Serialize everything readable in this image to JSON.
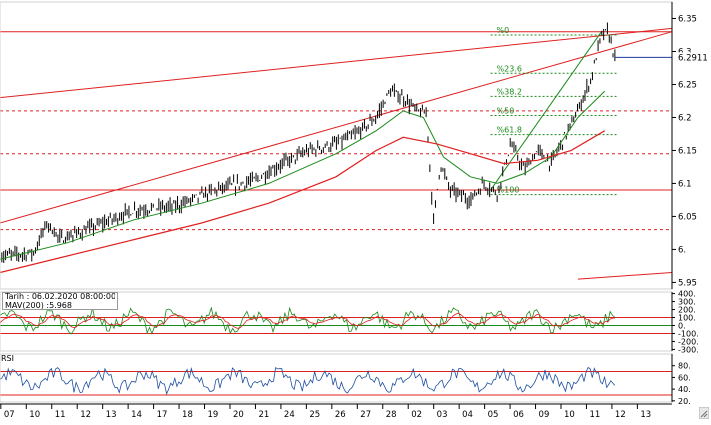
{
  "colors": {
    "price": "#000000",
    "ma_short": "#1a8a1a",
    "ma_long": "#e02020",
    "trendline": "#e02020",
    "horizontal": "#e02020",
    "fib_level": "#1a8a1a",
    "last_price_line": "#1f3c9c",
    "cci_line": "#1a8a1a",
    "cci_signal": "#e02020",
    "rsi_line": "#1f4fa0",
    "rsi_bands": "#e02020",
    "axis_text": "#000000"
  },
  "info": {
    "date_line": "Tarih : 06.02.2020 08:00:00",
    "mav_line": "MAV(200)     :5.968"
  },
  "rsi_label": "RSI",
  "chart_data": [
    {
      "type": "line",
      "panel": "price",
      "y_ticks": [
        "6.35",
        "6.3",
        "6.25",
        "6.2",
        "6.15",
        "6.1",
        "6.05",
        "6.",
        "5.95"
      ],
      "y_tick_values": [
        6.35,
        6.3,
        6.25,
        6.2,
        6.15,
        6.1,
        6.05,
        6.0,
        5.95
      ],
      "ylim": [
        5.94,
        6.375
      ],
      "last_price_label": "6.2911",
      "last_price": 6.2911,
      "x_ticks": [
        "07",
        "10",
        "11",
        "12",
        "13",
        "14",
        "17",
        "18",
        "19",
        "20",
        "21",
        "24",
        "25",
        "26",
        "27",
        "28",
        "02",
        "03",
        "04",
        "05",
        "06",
        "09",
        "10",
        "11",
        "12",
        "13"
      ],
      "price_path": [
        [
          0,
          5.99
        ],
        [
          0.05,
          5.995
        ],
        [
          0.07,
          6.04
        ],
        [
          0.09,
          6.015
        ],
        [
          0.13,
          6.03
        ],
        [
          0.2,
          6.06
        ],
        [
          0.26,
          6.065
        ],
        [
          0.32,
          6.09
        ],
        [
          0.38,
          6.105
        ],
        [
          0.42,
          6.13
        ],
        [
          0.46,
          6.15
        ],
        [
          0.5,
          6.16
        ],
        [
          0.53,
          6.175
        ],
        [
          0.56,
          6.2
        ],
        [
          0.58,
          6.24
        ],
        [
          0.6,
          6.23
        ],
        [
          0.62,
          6.21
        ],
        [
          0.635,
          6.205
        ],
        [
          0.645,
          6.04
        ],
        [
          0.655,
          6.13
        ],
        [
          0.67,
          6.09
        ],
        [
          0.7,
          6.075
        ],
        [
          0.72,
          6.1
        ],
        [
          0.74,
          6.085
        ],
        [
          0.76,
          6.16
        ],
        [
          0.78,
          6.12
        ],
        [
          0.8,
          6.15
        ],
        [
          0.82,
          6.13
        ],
        [
          0.84,
          6.17
        ],
        [
          0.86,
          6.21
        ],
        [
          0.88,
          6.26
        ],
        [
          0.895,
          6.325
        ],
        [
          0.905,
          6.33
        ],
        [
          0.915,
          6.29
        ]
      ],
      "ma_short_path": [
        [
          0,
          5.985
        ],
        [
          0.1,
          6.01
        ],
        [
          0.2,
          6.045
        ],
        [
          0.3,
          6.07
        ],
        [
          0.4,
          6.1
        ],
        [
          0.5,
          6.145
        ],
        [
          0.56,
          6.18
        ],
        [
          0.6,
          6.21
        ],
        [
          0.63,
          6.2
        ],
        [
          0.66,
          6.14
        ],
        [
          0.7,
          6.11
        ],
        [
          0.74,
          6.1
        ],
        [
          0.78,
          6.115
        ],
        [
          0.82,
          6.14
        ],
        [
          0.86,
          6.2
        ],
        [
          0.9,
          6.24
        ]
      ],
      "ma_long_path": [
        [
          0,
          5.965
        ],
        [
          0.1,
          5.99
        ],
        [
          0.2,
          6.015
        ],
        [
          0.3,
          6.04
        ],
        [
          0.4,
          6.07
        ],
        [
          0.5,
          6.11
        ],
        [
          0.56,
          6.15
        ],
        [
          0.6,
          6.17
        ],
        [
          0.65,
          6.16
        ],
        [
          0.7,
          6.145
        ],
        [
          0.75,
          6.13
        ],
        [
          0.8,
          6.135
        ],
        [
          0.85,
          6.15
        ],
        [
          0.9,
          6.18
        ]
      ],
      "trendlines": [
        {
          "from": [
            0,
            6.04
          ],
          "to": [
            1,
            6.33
          ]
        },
        {
          "from": [
            0,
            6.23
          ],
          "to": [
            1,
            6.335
          ]
        },
        {
          "from": [
            0.86,
            5.955
          ],
          "to": [
            1,
            5.965
          ]
        },
        {
          "from": [
            0.73,
            6.09
          ],
          "to": [
            0.895,
            6.33
          ],
          "color": "fib_level"
        }
      ],
      "horizontal_levels": [
        {
          "value": 6.33,
          "style": "solid"
        },
        {
          "value": 6.21,
          "style": "dashed"
        },
        {
          "value": 6.145,
          "style": "dashed"
        },
        {
          "value": 6.09,
          "style": "solid"
        },
        {
          "value": 6.03,
          "style": "dashed"
        }
      ],
      "fibonacci": {
        "x_start": 0.73,
        "x_end": 0.905,
        "levels": [
          {
            "label": "%0",
            "value": 6.325
          },
          {
            "label": "%23.6",
            "value": 6.267
          },
          {
            "label": "%38.2",
            "value": 6.232
          },
          {
            "label": "%50",
            "value": 6.203
          },
          {
            "label": "%61.8",
            "value": 6.174
          },
          {
            "label": "%100",
            "value": 6.083
          }
        ]
      }
    },
    {
      "type": "line",
      "panel": "cci",
      "y_ticks": [
        "400.",
        "300.",
        "200.",
        "100.",
        "0.",
        "-100.",
        "-200.",
        "-300."
      ],
      "y_tick_values": [
        400,
        300,
        200,
        100,
        0,
        -100,
        -200,
        -300
      ],
      "ylim": [
        -320,
        420
      ],
      "guide_levels": [
        100,
        -100
      ],
      "baseline": 0
    },
    {
      "type": "line",
      "panel": "rsi",
      "y_ticks": [
        "80.",
        "60.",
        "40.",
        "20."
      ],
      "y_tick_values": [
        80,
        60,
        40,
        20
      ],
      "ylim": [
        18,
        100
      ],
      "band_levels": [
        70,
        30
      ]
    }
  ]
}
